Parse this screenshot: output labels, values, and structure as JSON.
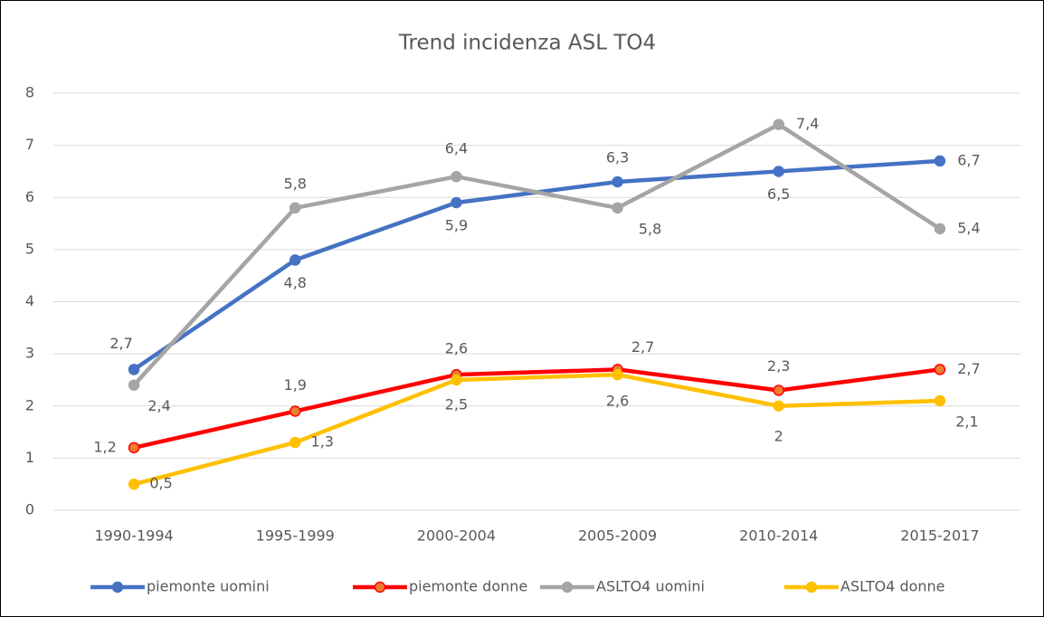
{
  "chart_data": {
    "type": "line",
    "title": "Trend incidenza ASL TO4",
    "categories": [
      "1990-1994",
      "1995-1999",
      "2000-2004",
      "2005-2009",
      "2010-2014",
      "2015-2017"
    ],
    "series": [
      {
        "name": "piemonte uomini",
        "color": "#4472c4",
        "values": [
          2.7,
          4.8,
          5.9,
          6.3,
          6.5,
          6.7
        ],
        "value_labels": [
          "2,7",
          "4,8",
          "5,9",
          "6,3",
          "6,5",
          "6,7"
        ]
      },
      {
        "name": "piemonte donne",
        "color": "#ff0000",
        "marker_fill": "#ed7d31",
        "values": [
          1.2,
          1.9,
          2.6,
          2.7,
          2.3,
          2.7
        ],
        "value_labels": [
          "1,2",
          "1,9",
          "2,6",
          "2,7",
          "2,3",
          "2,7"
        ]
      },
      {
        "name": "ASLTO4 uomini",
        "color": "#a5a5a5",
        "values": [
          2.4,
          5.8,
          6.4,
          5.8,
          7.4,
          5.4
        ],
        "value_labels": [
          "2,4",
          "5,8",
          "6,4",
          "5,8",
          "7,4",
          "5,4"
        ]
      },
      {
        "name": "ASLTO4 donne",
        "color": "#ffc000",
        "values": [
          0.5,
          1.3,
          2.5,
          2.6,
          2.0,
          2.1
        ],
        "value_labels": [
          "0,5",
          "1,3",
          "2,5",
          "2,6",
          "2",
          "2,1"
        ]
      }
    ],
    "ylim": [
      0,
      8
    ],
    "yticks": [
      0,
      1,
      2,
      3,
      4,
      5,
      6,
      7,
      8
    ],
    "grid": true,
    "legend": "bottom"
  }
}
